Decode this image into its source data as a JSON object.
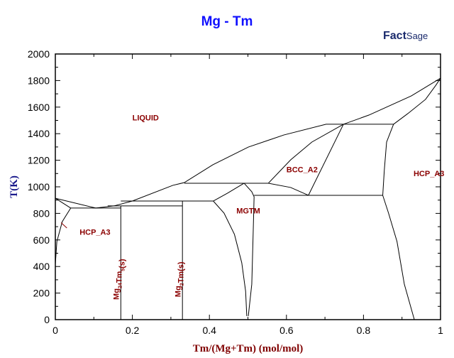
{
  "chart_data": {
    "type": "line",
    "title": "Mg - Tm",
    "xlabel": "Tm/(Mg+Tm) (mol/mol)",
    "ylabel": "T(K)",
    "xlim": [
      0,
      1
    ],
    "ylim": [
      0,
      2000
    ],
    "xticks": [
      0,
      0.2,
      0.4,
      0.6,
      0.8,
      1
    ],
    "xtick_labels": [
      "0",
      "0.2",
      "0.4",
      "0.6",
      "0.8",
      "1"
    ],
    "yticks": [
      0,
      200,
      400,
      600,
      800,
      1000,
      1200,
      1400,
      1600,
      1800,
      2000
    ],
    "ytick_labels": [
      "0",
      "200",
      "400",
      "600",
      "800",
      "1000",
      "1200",
      "1400",
      "1600",
      "1800",
      "2000"
    ],
    "grid": false,
    "line_color": "#000000",
    "label_color": "#8b0000",
    "title_color": "#1010ff",
    "lines": [
      [
        [
          0,
          914
        ],
        [
          0.105,
          840
        ],
        [
          0.152,
          856
        ],
        [
          0.2,
          893
        ],
        [
          0.305,
          1011
        ],
        [
          0.335,
          1032
        ],
        [
          0.409,
          1166
        ],
        [
          0.501,
          1299
        ],
        [
          0.593,
          1390
        ],
        [
          0.703,
          1471
        ],
        [
          0.748,
          1471
        ],
        [
          0.814,
          1540
        ],
        [
          0.924,
          1684
        ],
        [
          1,
          1818
        ]
      ],
      [
        [
          0,
          914
        ],
        [
          0.04,
          840
        ]
      ],
      [
        [
          0.04,
          840
        ],
        [
          0.018,
          738
        ],
        [
          0.004,
          588
        ],
        [
          0,
          417
        ]
      ],
      [
        [
          0.04,
          840
        ],
        [
          0.17,
          840
        ]
      ],
      [
        [
          0.136,
          856
        ],
        [
          0.33,
          856
        ]
      ],
      [
        [
          0.17,
          893
        ],
        [
          0.41,
          893
        ]
      ],
      [
        [
          0.17,
          0
        ],
        [
          0.17,
          856
        ]
      ],
      [
        [
          0.33,
          0
        ],
        [
          0.33,
          893
        ]
      ],
      [
        [
          0.41,
          893
        ],
        [
          0.447,
          952
        ],
        [
          0.49,
          1027
        ]
      ],
      [
        [
          0.41,
          893
        ],
        [
          0.438,
          802
        ],
        [
          0.465,
          642
        ],
        [
          0.484,
          428
        ],
        [
          0.494,
          214
        ],
        [
          0.497,
          27
        ]
      ],
      [
        [
          0.49,
          1027
        ],
        [
          0.51,
          963
        ],
        [
          0.516,
          925
        ],
        [
          0.514,
          695
        ],
        [
          0.51,
          267
        ],
        [
          0.501,
          27
        ]
      ],
      [
        [
          0.335,
          1027
        ],
        [
          0.553,
          1027
        ]
      ],
      [
        [
          0.516,
          936
        ],
        [
          0.85,
          936
        ]
      ],
      [
        [
          0.553,
          1027
        ],
        [
          0.611,
          1203
        ],
        [
          0.666,
          1337
        ],
        [
          0.748,
          1471
        ]
      ],
      [
        [
          0.748,
          1471
        ],
        [
          0.657,
          936
        ]
      ],
      [
        [
          0.553,
          1027
        ],
        [
          0.611,
          995
        ],
        [
          0.657,
          936
        ]
      ],
      [
        [
          0.748,
          1471
        ],
        [
          0.878,
          1471
        ]
      ],
      [
        [
          0.878,
          1471
        ],
        [
          0.86,
          1337
        ],
        [
          0.854,
          1123
        ],
        [
          0.85,
          936
        ],
        [
          0.865,
          802
        ],
        [
          0.887,
          588
        ],
        [
          0.906,
          267
        ],
        [
          0.932,
          0
        ]
      ],
      [
        [
          0.878,
          1471
        ],
        [
          0.915,
          1551
        ],
        [
          0.961,
          1658
        ],
        [
          0.988,
          1765
        ],
        [
          1,
          1818
        ]
      ]
    ],
    "annotations": [
      {
        "text": "LIQUID",
        "x": 0.2,
        "y": 1500
      },
      {
        "text": "HCP_A3",
        "x": 0.063,
        "y": 640
      },
      {
        "text": "MGTM",
        "x": 0.47,
        "y": 800
      },
      {
        "text": "BCC_A2",
        "x": 0.6,
        "y": 1110
      },
      {
        "text": "HCP_A3",
        "x": 0.93,
        "y": 1080
      }
    ],
    "phase_labels_vertical": [
      {
        "base": "Mg",
        "sub1": "24",
        "mid": "Tm",
        "sub2": "5",
        "tail": "(s)",
        "x": 0.165,
        "y": 150
      },
      {
        "base": "Mg",
        "sub1": "2",
        "mid": "Tm",
        "sub2": "",
        "tail": "(s)",
        "x": 0.325,
        "y": 170
      }
    ]
  },
  "logo": {
    "text": "Fact",
    "text2": "Sage"
  }
}
